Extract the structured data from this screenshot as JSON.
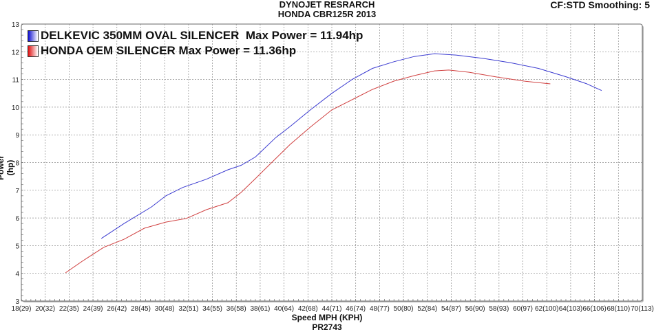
{
  "chart_data": {
    "type": "line",
    "title": "DYNOJET RESRARCH",
    "subtitle": "HONDA CBR125R 2013",
    "corner_note": "CF:STD Smoothing: 5",
    "xlabel": "Speed MPH (KPH)",
    "footer": "PR2743",
    "ylabel": "Power (hp)",
    "xlim": [
      18,
      70
    ],
    "ylim": [
      3,
      13
    ],
    "grid": true,
    "legend_position": "top-left",
    "x_tick_labels": [
      "18(29)",
      "20(32)",
      "22(35)",
      "24(39)",
      "26(42)",
      "28(45)",
      "30(48)",
      "32(51)",
      "34(55)",
      "36(58)",
      "38(61)",
      "40(64)",
      "42(68)",
      "44(71)",
      "46(74)",
      "48(77)",
      "50(80)",
      "52(84)",
      "54(87)",
      "56(90)",
      "58(93)",
      "60(97)",
      "62(100)",
      "64(103)",
      "66(106)",
      "68(110)",
      "70(113)"
    ],
    "y_ticks": [
      3,
      4,
      5,
      6,
      7,
      8,
      9,
      10,
      11,
      12,
      13
    ],
    "series": [
      {
        "name": "DELKEVIC 350MM OVAL SILENCER  Max Power = 11.94hp",
        "color": "#3a3ad0",
        "x": [
          24.7,
          26.6,
          28.9,
          30.1,
          31.5,
          33.5,
          35.3,
          36.4,
          37.6,
          39.3,
          40.5,
          42.2,
          44.0,
          45.7,
          47.4,
          49.2,
          50.9,
          52.6,
          54.4,
          56.7,
          59.0,
          61.3,
          63.6,
          65.3,
          66.6
        ],
        "y": [
          5.26,
          5.8,
          6.4,
          6.8,
          7.1,
          7.4,
          7.74,
          7.9,
          8.2,
          8.9,
          9.3,
          9.9,
          10.5,
          11.0,
          11.4,
          11.64,
          11.83,
          11.93,
          11.88,
          11.76,
          11.6,
          11.4,
          11.1,
          10.85,
          10.6
        ]
      },
      {
        "name": "HONDA OEM SILENCER Max Power = 11.36hp",
        "color": "#d04040",
        "x": [
          21.7,
          23.1,
          24.9,
          26.6,
          28.3,
          30.1,
          31.8,
          33.5,
          35.3,
          36.4,
          37.6,
          38.75,
          40.5,
          42.2,
          44.0,
          45.7,
          47.4,
          49.2,
          50.9,
          52.6,
          53.8,
          55.5,
          57.8,
          60.1,
          62.3
        ],
        "y": [
          4.02,
          4.44,
          4.94,
          5.23,
          5.63,
          5.85,
          5.98,
          6.3,
          6.55,
          6.92,
          7.42,
          7.91,
          8.65,
          9.28,
          9.9,
          10.27,
          10.64,
          10.94,
          11.14,
          11.31,
          11.34,
          11.26,
          11.09,
          10.94,
          10.84
        ]
      }
    ]
  }
}
